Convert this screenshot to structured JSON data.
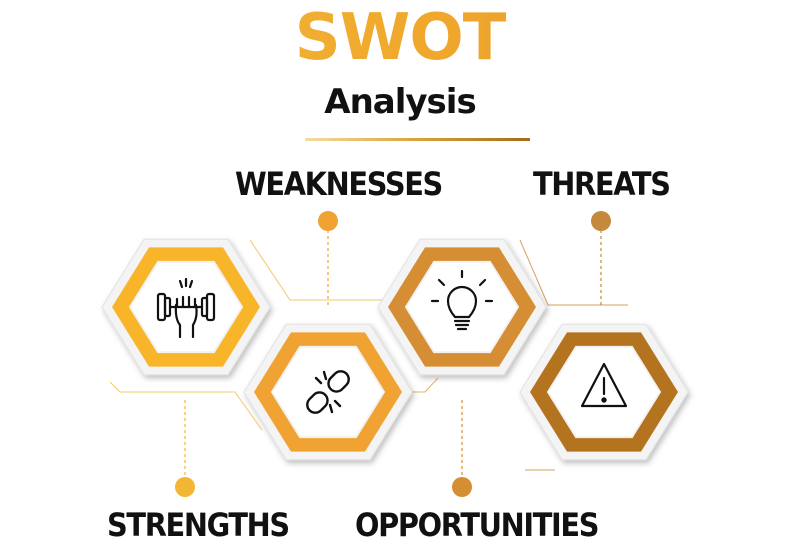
{
  "title": "SWOT",
  "subtitle": "Analysis",
  "items": [
    {
      "label": "STRENGTHS",
      "icon": "dumbbell-icon",
      "color": "#f8b52a"
    },
    {
      "label": "WEAKNESSES",
      "icon": "broken-link-icon",
      "color": "#f0a332"
    },
    {
      "label": "OPPORTUNITIES",
      "icon": "lightbulb-icon",
      "color": "#d68e35"
    },
    {
      "label": "THREATS",
      "icon": "warning-icon",
      "color": "#b4731f"
    }
  ],
  "connector_color": "#f0b43a",
  "dot_color": "#e39a3a"
}
